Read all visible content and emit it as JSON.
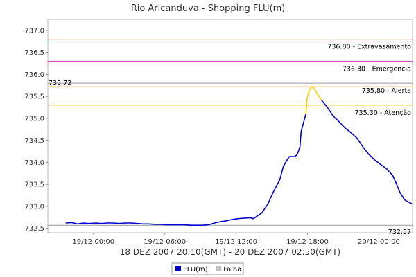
{
  "chart_data": {
    "type": "line",
    "title": "Rio Aricanduva - Shopping FLU(m)",
    "xlabel": "18 DEZ 2007 20:10(GMT) - 20 DEZ 2007 02:50(GMT)",
    "ylabel": "",
    "x_range_hours": [
      0,
      30.6667
    ],
    "ylim": [
      732.4,
      737.25
    ],
    "grid": false,
    "y_ticks": [
      {
        "value": 732.5,
        "label": "732.5"
      },
      {
        "value": 733.0,
        "label": "733.0"
      },
      {
        "value": 733.5,
        "label": "733.5"
      },
      {
        "value": 734.0,
        "label": "734.0"
      },
      {
        "value": 734.5,
        "label": "734.5"
      },
      {
        "value": 735.0,
        "label": "735.0"
      },
      {
        "value": 735.5,
        "label": "735.5"
      },
      {
        "value": 736.0,
        "label": "736.0"
      },
      {
        "value": 736.5,
        "label": "736.5"
      },
      {
        "value": 737.0,
        "label": "737.0"
      }
    ],
    "x_ticks": [
      {
        "value": 3.8333,
        "label": "19/12 00:00"
      },
      {
        "value": 9.8333,
        "label": "19/12 06:00"
      },
      {
        "value": 15.8333,
        "label": "19/12 12:00"
      },
      {
        "value": 21.8333,
        "label": "19/12 18:00"
      },
      {
        "value": 27.8333,
        "label": "20/12 00:00"
      }
    ],
    "thresholds": [
      {
        "value": 736.8,
        "label": "736.80 - Extravasamento",
        "color": "#cc3333"
      },
      {
        "value": 736.3,
        "label": "736.30 - Emergencia",
        "color": "#cc33cc"
      },
      {
        "value": 735.8,
        "label": "735.80 - Alerta",
        "color": "#999999"
      },
      {
        "value": 735.3,
        "label": "735.30 - Atenção",
        "color": "#e6cc00"
      }
    ],
    "max_marker": {
      "value": 735.72,
      "label": "735.72",
      "color": "#e6cc00"
    },
    "min_marker": {
      "value": 732.57,
      "label": "732.57",
      "color": "#999999"
    },
    "series": [
      {
        "name": "FLU(m)",
        "color": "#0000cc",
        "values": [
          [
            1.5,
            732.62
          ],
          [
            2.0,
            732.63
          ],
          [
            2.5,
            732.6
          ],
          [
            3.0,
            732.62
          ],
          [
            3.5,
            732.61
          ],
          [
            4.0,
            732.62
          ],
          [
            4.5,
            732.61
          ],
          [
            5.0,
            732.62
          ],
          [
            5.5,
            732.62
          ],
          [
            6.0,
            732.61
          ],
          [
            6.5,
            732.62
          ],
          [
            7.0,
            732.62
          ],
          [
            7.5,
            732.61
          ],
          [
            8.0,
            732.6
          ],
          [
            8.5,
            732.6
          ],
          [
            9.0,
            732.59
          ],
          [
            9.5,
            732.59
          ],
          [
            10.0,
            732.58
          ],
          [
            10.5,
            732.58
          ],
          [
            11.0,
            732.58
          ],
          [
            11.5,
            732.58
          ],
          [
            12.0,
            732.57
          ],
          [
            12.5,
            732.57
          ],
          [
            13.0,
            732.57
          ],
          [
            13.5,
            732.58
          ],
          [
            14.0,
            732.62
          ],
          [
            14.5,
            732.65
          ],
          [
            15.0,
            732.67
          ],
          [
            15.5,
            732.7
          ],
          [
            16.0,
            732.72
          ],
          [
            16.5,
            732.73
          ],
          [
            17.0,
            732.74
          ],
          [
            17.3,
            732.72
          ],
          [
            17.5,
            732.76
          ],
          [
            18.0,
            732.85
          ],
          [
            18.5,
            733.05
          ],
          [
            19.0,
            733.35
          ],
          [
            19.5,
            733.6
          ],
          [
            19.8,
            733.9
          ],
          [
            20.0,
            734.0
          ],
          [
            20.3,
            734.13
          ],
          [
            20.8,
            734.13
          ],
          [
            21.0,
            734.2
          ],
          [
            21.2,
            734.35
          ],
          [
            21.3,
            734.7
          ],
          [
            21.5,
            734.9
          ],
          [
            21.7,
            735.1
          ]
        ]
      },
      {
        "name": "FLU(m)-alert-segment",
        "color": "#ffcc00",
        "values": [
          [
            21.7,
            735.1
          ],
          [
            21.8,
            735.45
          ],
          [
            22.0,
            735.65
          ],
          [
            22.2,
            735.72
          ],
          [
            22.4,
            735.68
          ],
          [
            22.6,
            735.58
          ],
          [
            22.8,
            735.5
          ],
          [
            23.0,
            735.42
          ]
        ]
      },
      {
        "name": "FLU(m)-descend",
        "color": "#0000cc",
        "values": [
          [
            23.0,
            735.42
          ],
          [
            23.5,
            735.25
          ],
          [
            24.0,
            735.05
          ],
          [
            24.5,
            734.92
          ],
          [
            25.0,
            734.78
          ],
          [
            25.5,
            734.67
          ],
          [
            26.0,
            734.55
          ],
          [
            26.5,
            734.35
          ],
          [
            27.0,
            734.18
          ],
          [
            27.5,
            734.05
          ],
          [
            28.0,
            733.95
          ],
          [
            28.5,
            733.85
          ],
          [
            29.0,
            733.7
          ],
          [
            29.3,
            733.52
          ],
          [
            29.6,
            733.32
          ],
          [
            30.0,
            733.15
          ],
          [
            30.3,
            733.1
          ],
          [
            30.6,
            733.06
          ]
        ]
      }
    ],
    "legend": {
      "placement": "bottom",
      "entries": [
        {
          "label": "FLU(m)",
          "color": "#0000cc"
        },
        {
          "label": "Falha",
          "color": "#c0c0c0"
        }
      ]
    }
  }
}
